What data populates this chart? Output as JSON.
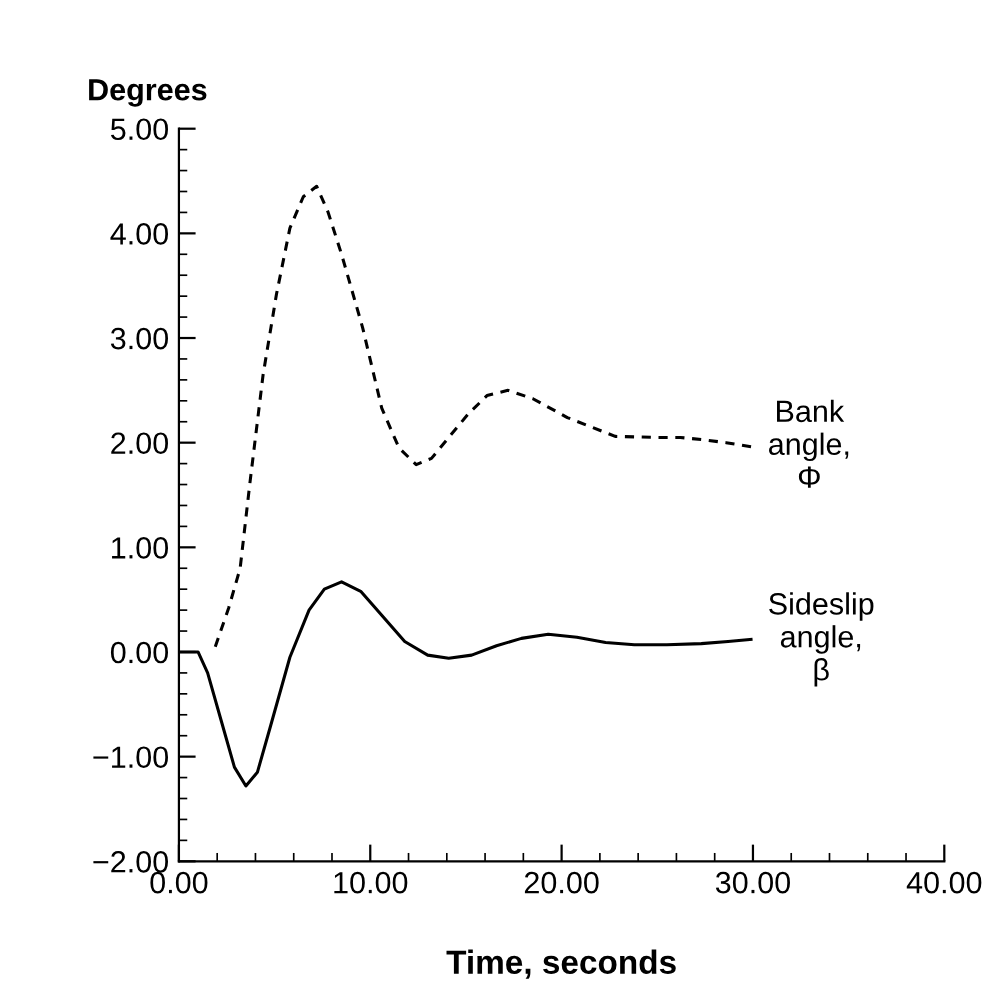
{
  "chart_data": {
    "type": "line",
    "ylabel": "Degrees",
    "xlabel": "Time, seconds",
    "xlim": [
      0,
      40
    ],
    "ylim": [
      -2,
      5
    ],
    "xticks": [
      {
        "value": 0,
        "label": "0.00"
      },
      {
        "value": 10,
        "label": "10.00"
      },
      {
        "value": 20,
        "label": "20.00"
      },
      {
        "value": 30,
        "label": "30.00"
      },
      {
        "value": 40,
        "label": "40.00"
      }
    ],
    "yticks": [
      {
        "value": -2,
        "label": "−2.00"
      },
      {
        "value": -1,
        "label": "−1.00"
      },
      {
        "value": 0,
        "label": "0.00"
      },
      {
        "value": 1,
        "label": "1.00"
      },
      {
        "value": 2,
        "label": "2.00"
      },
      {
        "value": 3,
        "label": "3.00"
      },
      {
        "value": 4,
        "label": "4.00"
      },
      {
        "value": 5,
        "label": "5.00"
      }
    ],
    "grid": false,
    "legend": false,
    "marker": "none",
    "series": [
      {
        "name": "Bank\nangle,\nΦ",
        "color": "#000000",
        "line_style": "dashed",
        "x": [
          1.9,
          2.6,
          3.2,
          3.7,
          4.4,
          5.1,
          5.8,
          6.5,
          7.2,
          7.8,
          8.5,
          9.6,
          10.6,
          11.5,
          12.4,
          13.2,
          14.1,
          15.1,
          16.1,
          17.2,
          18.5,
          20.3,
          22.8,
          24.9,
          26.2,
          27.3,
          28.6,
          29.9
        ],
        "values": [
          0.05,
          0.42,
          0.8,
          1.6,
          2.65,
          3.42,
          4.05,
          4.35,
          4.45,
          4.2,
          3.8,
          3.1,
          2.33,
          1.95,
          1.79,
          1.85,
          2.05,
          2.27,
          2.45,
          2.5,
          2.42,
          2.24,
          2.06,
          2.05,
          2.05,
          2.03,
          2.0,
          1.96
        ]
      },
      {
        "name": "Sideslip\nangle,\nβ",
        "color": "#000000",
        "line_style": "solid",
        "x": [
          0,
          1.0,
          1.5,
          2.2,
          2.9,
          3.5,
          4.1,
          4.8,
          5.8,
          6.8,
          7.6,
          8.5,
          9.5,
          10.6,
          11.8,
          13.0,
          14.1,
          15.3,
          16.6,
          17.9,
          19.3,
          20.8,
          22.3,
          23.8,
          25.5,
          27.3,
          28.7,
          29.9
        ],
        "values": [
          0,
          0,
          -0.2,
          -0.65,
          -1.1,
          -1.28,
          -1.15,
          -0.7,
          -0.05,
          0.4,
          0.6,
          0.67,
          0.58,
          0.35,
          0.1,
          -0.03,
          -0.06,
          -0.03,
          0.06,
          0.13,
          0.17,
          0.14,
          0.09,
          0.07,
          0.07,
          0.08,
          0.1,
          0.12
        ]
      }
    ]
  }
}
